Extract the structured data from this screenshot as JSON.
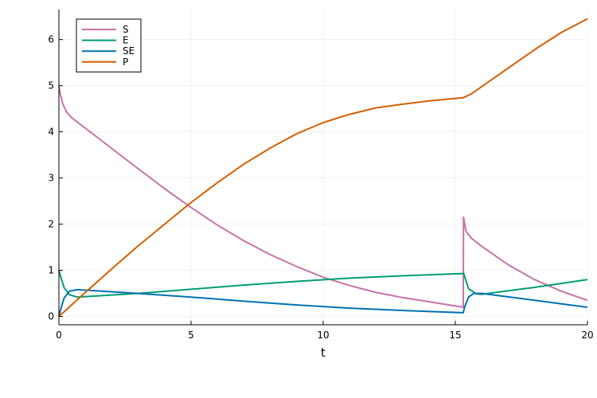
{
  "chart_data": {
    "type": "line",
    "title": "",
    "xlabel": "t",
    "ylabel": "",
    "xlim": [
      0,
      20
    ],
    "ylim": [
      -0.18,
      6.65
    ],
    "grid": true,
    "legend_position": "top-left",
    "x_ticks": [
      "0",
      "5",
      "10",
      "15",
      "20"
    ],
    "y_ticks": [
      "0",
      "1",
      "2",
      "3",
      "4",
      "5",
      "6"
    ],
    "series": [
      {
        "name": "S",
        "color": "#c871a8",
        "points": [
          [
            0,
            5.0
          ],
          [
            0.05,
            4.82
          ],
          [
            0.15,
            4.6
          ],
          [
            0.3,
            4.42
          ],
          [
            0.5,
            4.3
          ],
          [
            1,
            4.08
          ],
          [
            2,
            3.64
          ],
          [
            3,
            3.2
          ],
          [
            4,
            2.77
          ],
          [
            5,
            2.36
          ],
          [
            6,
            1.98
          ],
          [
            7,
            1.64
          ],
          [
            8,
            1.34
          ],
          [
            9,
            1.08
          ],
          [
            10,
            0.85
          ],
          [
            11,
            0.67
          ],
          [
            12,
            0.52
          ],
          [
            13,
            0.41
          ],
          [
            14,
            0.32
          ],
          [
            15.3,
            0.2
          ],
          [
            15.31,
            2.15
          ],
          [
            15.4,
            1.85
          ],
          [
            15.6,
            1.7
          ],
          [
            16,
            1.52
          ],
          [
            17,
            1.12
          ],
          [
            18,
            0.8
          ],
          [
            19,
            0.55
          ],
          [
            20,
            0.35
          ]
        ]
      },
      {
        "name": "E",
        "color": "#009e73",
        "points": [
          [
            0,
            1.0
          ],
          [
            0.1,
            0.8
          ],
          [
            0.2,
            0.62
          ],
          [
            0.4,
            0.47
          ],
          [
            0.7,
            0.42
          ],
          [
            1,
            0.43
          ],
          [
            3,
            0.5
          ],
          [
            5,
            0.59
          ],
          [
            7,
            0.68
          ],
          [
            9,
            0.76
          ],
          [
            11,
            0.83
          ],
          [
            13,
            0.88
          ],
          [
            15.3,
            0.93
          ],
          [
            15.32,
            0.93
          ],
          [
            15.5,
            0.6
          ],
          [
            15.8,
            0.49
          ],
          [
            16,
            0.48
          ],
          [
            18,
            0.63
          ],
          [
            20,
            0.8
          ]
        ]
      },
      {
        "name": "SE",
        "color": "#0072b2",
        "points": [
          [
            0,
            0.0
          ],
          [
            0.1,
            0.22
          ],
          [
            0.2,
            0.4
          ],
          [
            0.4,
            0.55
          ],
          [
            0.7,
            0.58
          ],
          [
            1,
            0.57
          ],
          [
            3,
            0.5
          ],
          [
            5,
            0.42
          ],
          [
            7,
            0.33
          ],
          [
            9,
            0.25
          ],
          [
            11,
            0.18
          ],
          [
            13,
            0.13
          ],
          [
            15.3,
            0.08
          ],
          [
            15.35,
            0.2
          ],
          [
            15.5,
            0.42
          ],
          [
            15.7,
            0.5
          ],
          [
            16,
            0.5
          ],
          [
            18,
            0.35
          ],
          [
            20,
            0.2
          ]
        ]
      },
      {
        "name": "P",
        "color": "#d55e00",
        "points": [
          [
            0,
            0.0
          ],
          [
            1,
            0.52
          ],
          [
            2,
            1.03
          ],
          [
            3,
            1.53
          ],
          [
            4,
            2.0
          ],
          [
            5,
            2.47
          ],
          [
            6,
            2.9
          ],
          [
            7,
            3.3
          ],
          [
            8,
            3.65
          ],
          [
            9,
            3.96
          ],
          [
            10,
            4.2
          ],
          [
            11,
            4.38
          ],
          [
            12,
            4.52
          ],
          [
            13,
            4.6
          ],
          [
            14,
            4.67
          ],
          [
            15.3,
            4.74
          ],
          [
            15.6,
            4.82
          ],
          [
            16,
            4.98
          ],
          [
            17,
            5.38
          ],
          [
            18,
            5.78
          ],
          [
            19,
            6.15
          ],
          [
            20,
            6.45
          ]
        ]
      }
    ]
  }
}
